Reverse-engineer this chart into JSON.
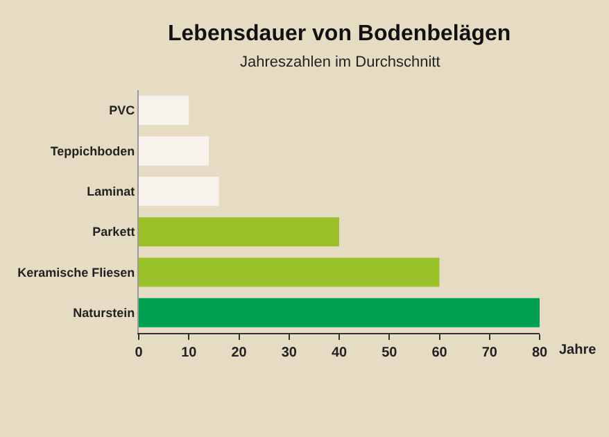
{
  "chart_data": {
    "type": "bar",
    "orientation": "horizontal",
    "title": "Lebensdauer von Bodenbelägen",
    "subtitle": "Jahreszahlen im Durchschnitt",
    "xlabel": "Jahre",
    "categories": [
      "PVC",
      "Teppichboden",
      "Laminat",
      "Parkett",
      "Keramische Fliesen",
      "Naturstein"
    ],
    "values": [
      10,
      14,
      16,
      40,
      60,
      80
    ],
    "colors": [
      "#f7f3ec",
      "#f7f3ec",
      "#f7f3ec",
      "#9bc12a",
      "#9bc12a",
      "#00a052"
    ],
    "xlim": [
      0,
      80
    ],
    "xticks": [
      0,
      10,
      20,
      30,
      40,
      50,
      60,
      70,
      80
    ],
    "grid": false
  }
}
